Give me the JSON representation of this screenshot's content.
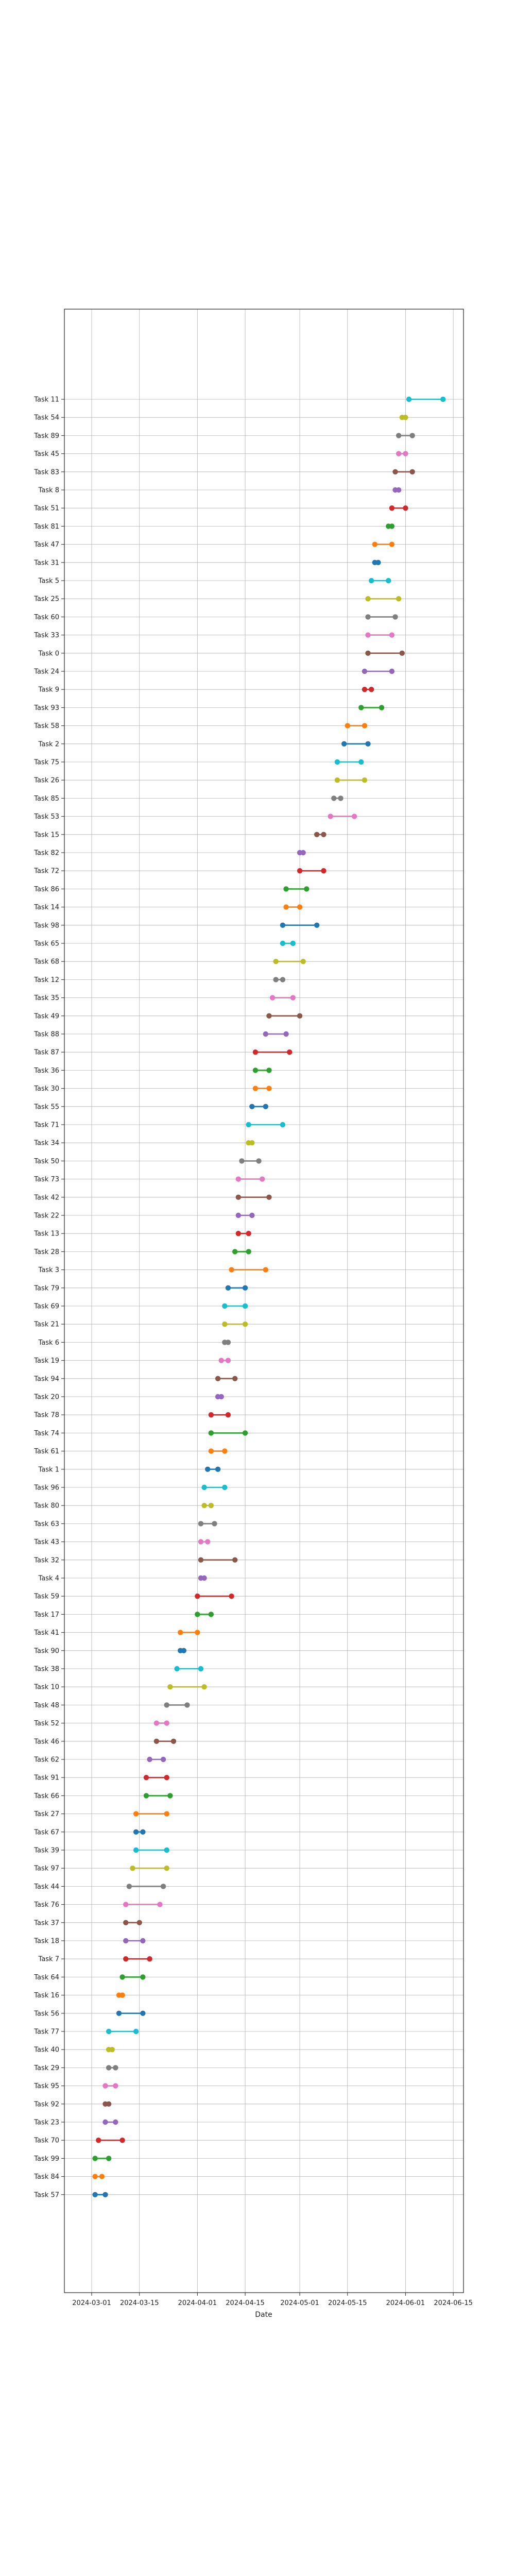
{
  "chart_data": {
    "type": "gantt-dumbbell",
    "xlabel": "Date",
    "x_ticks": [
      "2024-03-01",
      "2024-03-15",
      "2024-04-01",
      "2024-04-15",
      "2024-05-01",
      "2024-05-15",
      "2024-06-01",
      "2024-06-15"
    ],
    "xlim": [
      "2024-02-22",
      "2024-06-18"
    ],
    "grid": true,
    "palette": [
      "#1f77b4",
      "#ff7f0e",
      "#2ca02c",
      "#d62728",
      "#9467bd",
      "#8c564b",
      "#e377c2",
      "#7f7f7f",
      "#bcbd22",
      "#17becf"
    ],
    "tasks": [
      {
        "label": "Task 11",
        "start": "2024-06-02",
        "end": "2024-06-12"
      },
      {
        "label": "Task 54",
        "start": "2024-05-31",
        "end": "2024-06-01"
      },
      {
        "label": "Task 89",
        "start": "2024-05-30",
        "end": "2024-06-03"
      },
      {
        "label": "Task 45",
        "start": "2024-05-30",
        "end": "2024-06-01"
      },
      {
        "label": "Task 83",
        "start": "2024-05-29",
        "end": "2024-06-03"
      },
      {
        "label": "Task 8",
        "start": "2024-05-29",
        "end": "2024-05-30"
      },
      {
        "label": "Task 51",
        "start": "2024-05-28",
        "end": "2024-06-01"
      },
      {
        "label": "Task 81",
        "start": "2024-05-27",
        "end": "2024-05-28"
      },
      {
        "label": "Task 47",
        "start": "2024-05-23",
        "end": "2024-05-28"
      },
      {
        "label": "Task 31",
        "start": "2024-05-23",
        "end": "2024-05-24"
      },
      {
        "label": "Task 5",
        "start": "2024-05-22",
        "end": "2024-05-27"
      },
      {
        "label": "Task 25",
        "start": "2024-05-21",
        "end": "2024-05-30"
      },
      {
        "label": "Task 60",
        "start": "2024-05-21",
        "end": "2024-05-29"
      },
      {
        "label": "Task 33",
        "start": "2024-05-21",
        "end": "2024-05-28"
      },
      {
        "label": "Task 0",
        "start": "2024-05-21",
        "end": "2024-05-31"
      },
      {
        "label": "Task 24",
        "start": "2024-05-20",
        "end": "2024-05-28"
      },
      {
        "label": "Task 9",
        "start": "2024-05-20",
        "end": "2024-05-22"
      },
      {
        "label": "Task 93",
        "start": "2024-05-19",
        "end": "2024-05-25"
      },
      {
        "label": "Task 58",
        "start": "2024-05-15",
        "end": "2024-05-20"
      },
      {
        "label": "Task 2",
        "start": "2024-05-14",
        "end": "2024-05-21"
      },
      {
        "label": "Task 75",
        "start": "2024-05-12",
        "end": "2024-05-19"
      },
      {
        "label": "Task 26",
        "start": "2024-05-12",
        "end": "2024-05-20"
      },
      {
        "label": "Task 85",
        "start": "2024-05-11",
        "end": "2024-05-13"
      },
      {
        "label": "Task 53",
        "start": "2024-05-10",
        "end": "2024-05-17"
      },
      {
        "label": "Task 15",
        "start": "2024-05-06",
        "end": "2024-05-08"
      },
      {
        "label": "Task 82",
        "start": "2024-05-01",
        "end": "2024-05-02"
      },
      {
        "label": "Task 72",
        "start": "2024-05-01",
        "end": "2024-05-08"
      },
      {
        "label": "Task 86",
        "start": "2024-04-27",
        "end": "2024-05-03"
      },
      {
        "label": "Task 14",
        "start": "2024-04-27",
        "end": "2024-05-01"
      },
      {
        "label": "Task 98",
        "start": "2024-04-26",
        "end": "2024-05-06"
      },
      {
        "label": "Task 65",
        "start": "2024-04-26",
        "end": "2024-04-29"
      },
      {
        "label": "Task 68",
        "start": "2024-04-24",
        "end": "2024-05-02"
      },
      {
        "label": "Task 12",
        "start": "2024-04-24",
        "end": "2024-04-26"
      },
      {
        "label": "Task 35",
        "start": "2024-04-23",
        "end": "2024-04-29"
      },
      {
        "label": "Task 49",
        "start": "2024-04-22",
        "end": "2024-05-01"
      },
      {
        "label": "Task 88",
        "start": "2024-04-21",
        "end": "2024-04-27"
      },
      {
        "label": "Task 87",
        "start": "2024-04-18",
        "end": "2024-04-28"
      },
      {
        "label": "Task 36",
        "start": "2024-04-18",
        "end": "2024-04-22"
      },
      {
        "label": "Task 30",
        "start": "2024-04-18",
        "end": "2024-04-22"
      },
      {
        "label": "Task 55",
        "start": "2024-04-17",
        "end": "2024-04-21"
      },
      {
        "label": "Task 71",
        "start": "2024-04-16",
        "end": "2024-04-26"
      },
      {
        "label": "Task 34",
        "start": "2024-04-16",
        "end": "2024-04-17"
      },
      {
        "label": "Task 50",
        "start": "2024-04-14",
        "end": "2024-04-19"
      },
      {
        "label": "Task 73",
        "start": "2024-04-13",
        "end": "2024-04-20"
      },
      {
        "label": "Task 42",
        "start": "2024-04-13",
        "end": "2024-04-22"
      },
      {
        "label": "Task 22",
        "start": "2024-04-13",
        "end": "2024-04-17"
      },
      {
        "label": "Task 13",
        "start": "2024-04-13",
        "end": "2024-04-16"
      },
      {
        "label": "Task 28",
        "start": "2024-04-12",
        "end": "2024-04-16"
      },
      {
        "label": "Task 3",
        "start": "2024-04-11",
        "end": "2024-04-21"
      },
      {
        "label": "Task 79",
        "start": "2024-04-10",
        "end": "2024-04-15"
      },
      {
        "label": "Task 69",
        "start": "2024-04-09",
        "end": "2024-04-15"
      },
      {
        "label": "Task 21",
        "start": "2024-04-09",
        "end": "2024-04-15"
      },
      {
        "label": "Task 6",
        "start": "2024-04-09",
        "end": "2024-04-10"
      },
      {
        "label": "Task 19",
        "start": "2024-04-08",
        "end": "2024-04-10"
      },
      {
        "label": "Task 94",
        "start": "2024-04-07",
        "end": "2024-04-12"
      },
      {
        "label": "Task 20",
        "start": "2024-04-07",
        "end": "2024-04-08"
      },
      {
        "label": "Task 78",
        "start": "2024-04-05",
        "end": "2024-04-10"
      },
      {
        "label": "Task 74",
        "start": "2024-04-05",
        "end": "2024-04-15"
      },
      {
        "label": "Task 61",
        "start": "2024-04-05",
        "end": "2024-04-09"
      },
      {
        "label": "Task 1",
        "start": "2024-04-04",
        "end": "2024-04-07"
      },
      {
        "label": "Task 96",
        "start": "2024-04-03",
        "end": "2024-04-09"
      },
      {
        "label": "Task 80",
        "start": "2024-04-03",
        "end": "2024-04-05"
      },
      {
        "label": "Task 63",
        "start": "2024-04-02",
        "end": "2024-04-06"
      },
      {
        "label": "Task 43",
        "start": "2024-04-02",
        "end": "2024-04-04"
      },
      {
        "label": "Task 32",
        "start": "2024-04-02",
        "end": "2024-04-12"
      },
      {
        "label": "Task 4",
        "start": "2024-04-02",
        "end": "2024-04-03"
      },
      {
        "label": "Task 59",
        "start": "2024-04-01",
        "end": "2024-04-11"
      },
      {
        "label": "Task 17",
        "start": "2024-04-01",
        "end": "2024-04-05"
      },
      {
        "label": "Task 41",
        "start": "2024-03-27",
        "end": "2024-04-01"
      },
      {
        "label": "Task 90",
        "start": "2024-03-27",
        "end": "2024-03-28"
      },
      {
        "label": "Task 38",
        "start": "2024-03-26",
        "end": "2024-04-02"
      },
      {
        "label": "Task 10",
        "start": "2024-03-24",
        "end": "2024-04-03"
      },
      {
        "label": "Task 48",
        "start": "2024-03-23",
        "end": "2024-03-29"
      },
      {
        "label": "Task 52",
        "start": "2024-03-20",
        "end": "2024-03-23"
      },
      {
        "label": "Task 46",
        "start": "2024-03-20",
        "end": "2024-03-25"
      },
      {
        "label": "Task 62",
        "start": "2024-03-18",
        "end": "2024-03-22"
      },
      {
        "label": "Task 91",
        "start": "2024-03-17",
        "end": "2024-03-23"
      },
      {
        "label": "Task 66",
        "start": "2024-03-17",
        "end": "2024-03-24"
      },
      {
        "label": "Task 27",
        "start": "2024-03-14",
        "end": "2024-03-23"
      },
      {
        "label": "Task 67",
        "start": "2024-03-14",
        "end": "2024-03-16"
      },
      {
        "label": "Task 39",
        "start": "2024-03-14",
        "end": "2024-03-23"
      },
      {
        "label": "Task 97",
        "start": "2024-03-13",
        "end": "2024-03-23"
      },
      {
        "label": "Task 44",
        "start": "2024-03-12",
        "end": "2024-03-22"
      },
      {
        "label": "Task 76",
        "start": "2024-03-11",
        "end": "2024-03-21"
      },
      {
        "label": "Task 37",
        "start": "2024-03-11",
        "end": "2024-03-15"
      },
      {
        "label": "Task 18",
        "start": "2024-03-11",
        "end": "2024-03-16"
      },
      {
        "label": "Task 7",
        "start": "2024-03-11",
        "end": "2024-03-18"
      },
      {
        "label": "Task 64",
        "start": "2024-03-10",
        "end": "2024-03-16"
      },
      {
        "label": "Task 16",
        "start": "2024-03-09",
        "end": "2024-03-10"
      },
      {
        "label": "Task 56",
        "start": "2024-03-09",
        "end": "2024-03-16"
      },
      {
        "label": "Task 77",
        "start": "2024-03-06",
        "end": "2024-03-14"
      },
      {
        "label": "Task 40",
        "start": "2024-03-06",
        "end": "2024-03-07"
      },
      {
        "label": "Task 29",
        "start": "2024-03-06",
        "end": "2024-03-08"
      },
      {
        "label": "Task 95",
        "start": "2024-03-05",
        "end": "2024-03-08"
      },
      {
        "label": "Task 92",
        "start": "2024-03-05",
        "end": "2024-03-06"
      },
      {
        "label": "Task 23",
        "start": "2024-03-05",
        "end": "2024-03-08"
      },
      {
        "label": "Task 70",
        "start": "2024-03-03",
        "end": "2024-03-10"
      },
      {
        "label": "Task 99",
        "start": "2024-03-02",
        "end": "2024-03-06"
      },
      {
        "label": "Task 84",
        "start": "2024-03-02",
        "end": "2024-03-04"
      },
      {
        "label": "Task 57",
        "start": "2024-03-02",
        "end": "2024-03-05"
      }
    ]
  }
}
